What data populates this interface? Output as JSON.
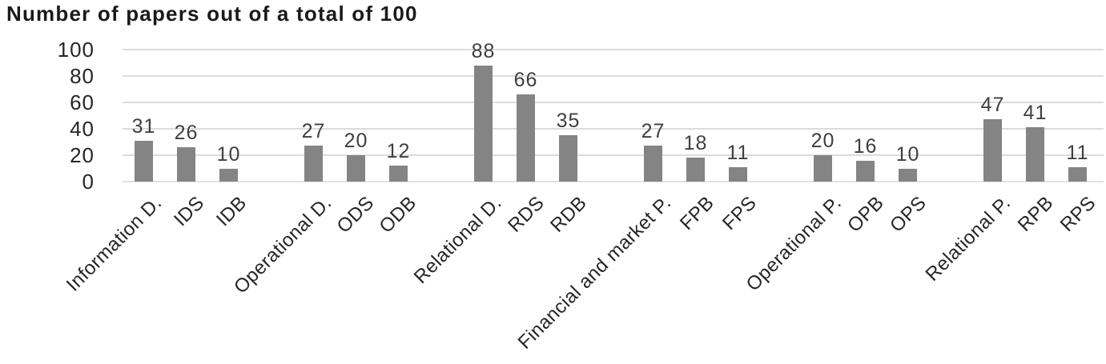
{
  "title": "Number of papers out of a total of 100",
  "colors": {
    "bar": "#848484",
    "gridline": "#dcdcdc",
    "value_label": "#3f3f3f",
    "tick_label": "#262626",
    "title": "#1a1a1a",
    "background": "#ffffff"
  },
  "chart_data": {
    "type": "bar",
    "title": "Number of papers out of a total of 100",
    "categories": [
      "Information D.",
      "IDS",
      "IDB",
      "Operational D.",
      "ODS",
      "ODB",
      "Relational D.",
      "RDS",
      "RDB",
      "Financial and market P.",
      "FPB",
      "FPS",
      "Operational P.",
      "OPB",
      "OPS",
      "Relational P.",
      "RPB",
      "RPS"
    ],
    "values": [
      31,
      26,
      10,
      27,
      20,
      12,
      88,
      66,
      35,
      27,
      18,
      11,
      20,
      16,
      10,
      47,
      41,
      11
    ],
    "group_size": 3,
    "xlabel": "",
    "ylabel": "",
    "yticks": [
      0,
      20,
      40,
      60,
      80,
      100
    ],
    "ylim": [
      0,
      100
    ],
    "grid": true,
    "legend_position": "none",
    "x_tick_rotation_deg": 45,
    "value_labels_shown": true
  }
}
